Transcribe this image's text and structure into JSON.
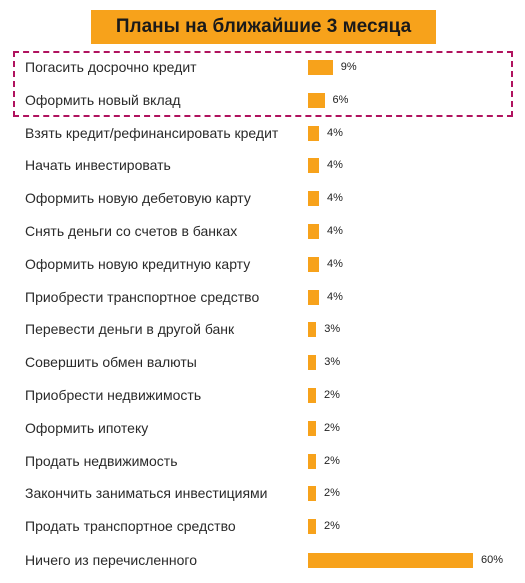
{
  "chart_data": {
    "type": "bar",
    "title": "Планы на ближайшие 3 месяца",
    "orientation": "horizontal",
    "highlight_color": "#b0125e",
    "bar_color": "#f7a21b",
    "categories": [
      "Погасить досрочно кредит",
      "Оформить новый вклад",
      "Взять кредит/рефинансировать кредит",
      "Начать инвестировать",
      "Оформить новую дебетовую карту",
      "Снять деньги со счетов в банках",
      "Оформить новую кредитную карту",
      "Приобрести транспортное средство",
      "Перевести деньги в другой банк",
      "Совершить обмен валюты",
      "Приобрести недвижимость",
      "Оформить ипотеку",
      "Продать недвижимость",
      "Закончить заниматься инвестициями",
      "Продать транспортное средство",
      "Ничего из перечисленного"
    ],
    "values": [
      9,
      6,
      4,
      4,
      4,
      4,
      4,
      4,
      3,
      3,
      2,
      2,
      2,
      2,
      2,
      60
    ],
    "value_labels": [
      "9%",
      "6%",
      "4%",
      "4%",
      "4%",
      "4%",
      "4%",
      "4%",
      "3%",
      "3%",
      "2%",
      "2%",
      "2%",
      "2%",
      "2%",
      "60%"
    ],
    "highlighted": [
      0,
      1
    ]
  }
}
